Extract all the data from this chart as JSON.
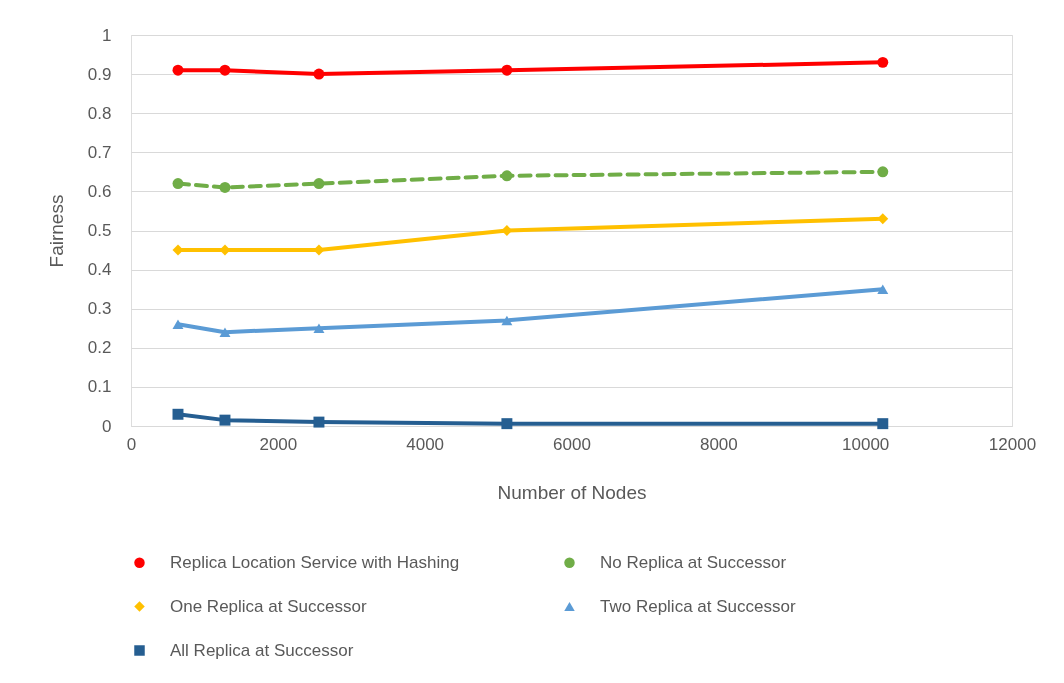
{
  "chart_data": {
    "type": "line",
    "xlabel": "Number of Nodes",
    "ylabel": "Fairness",
    "xlim": [
      0,
      12000
    ],
    "xticks": [
      0,
      2000,
      4000,
      6000,
      8000,
      10000,
      12000
    ],
    "ylim": [
      0,
      1
    ],
    "yticks": [
      0,
      0.1,
      0.2,
      0.3,
      0.4,
      0.5,
      0.6,
      0.7,
      0.8,
      0.9,
      1
    ],
    "x": [
      640,
      1280,
      2560,
      5120,
      10240
    ],
    "series": [
      {
        "name": "Replica Location Service with Hashing",
        "color": "#ff0000",
        "marker": "circle",
        "line_style": "solid",
        "values": [
          0.91,
          0.91,
          0.9,
          0.91,
          0.93
        ]
      },
      {
        "name": "No Replica at Successor",
        "color": "#70ad47",
        "marker": "circle",
        "line_style": "dashed",
        "values": [
          0.62,
          0.61,
          0.62,
          0.64,
          0.65
        ]
      },
      {
        "name": "One Replica at Successor",
        "color": "#ffc000",
        "marker": "diamond",
        "line_style": "solid",
        "values": [
          0.45,
          0.45,
          0.45,
          0.5,
          0.53
        ]
      },
      {
        "name": "Two Replica at Successor",
        "color": "#5b9bd5",
        "marker": "triangle",
        "line_style": "solid",
        "values": [
          0.26,
          0.24,
          0.25,
          0.27,
          0.35
        ]
      },
      {
        "name": "All Replica at Successor",
        "color": "#255e91",
        "marker": "square",
        "line_style": "solid",
        "values": [
          0.03,
          0.015,
          0.01,
          0.006,
          0.006
        ]
      }
    ],
    "grid": "y",
    "legend": "bottom"
  }
}
